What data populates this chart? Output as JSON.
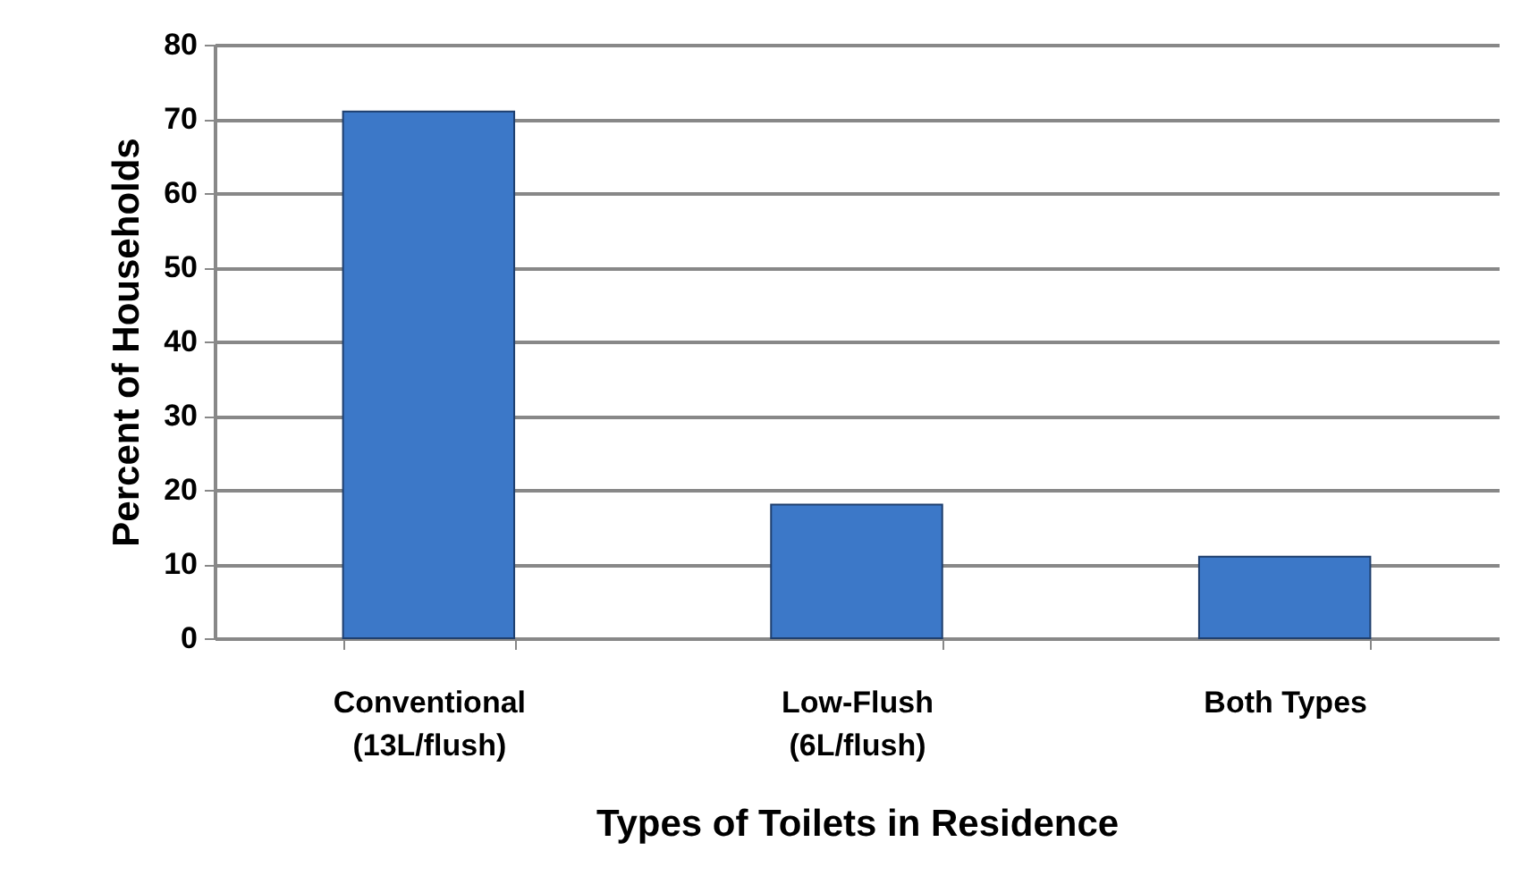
{
  "chart_data": {
    "type": "bar",
    "xlabel": "Types of Toilets in Residence",
    "ylabel": "Percent of Households",
    "categories": [
      "Conventional\n(13L/flush)",
      "Low-Flush\n(6L/flush)",
      "Both Types"
    ],
    "values": [
      71,
      18,
      11
    ],
    "color": "#3c78c8",
    "ylim": [
      0,
      80
    ],
    "yticks": [
      0,
      10,
      20,
      30,
      40,
      50,
      60,
      70,
      80
    ],
    "grid": "y"
  }
}
